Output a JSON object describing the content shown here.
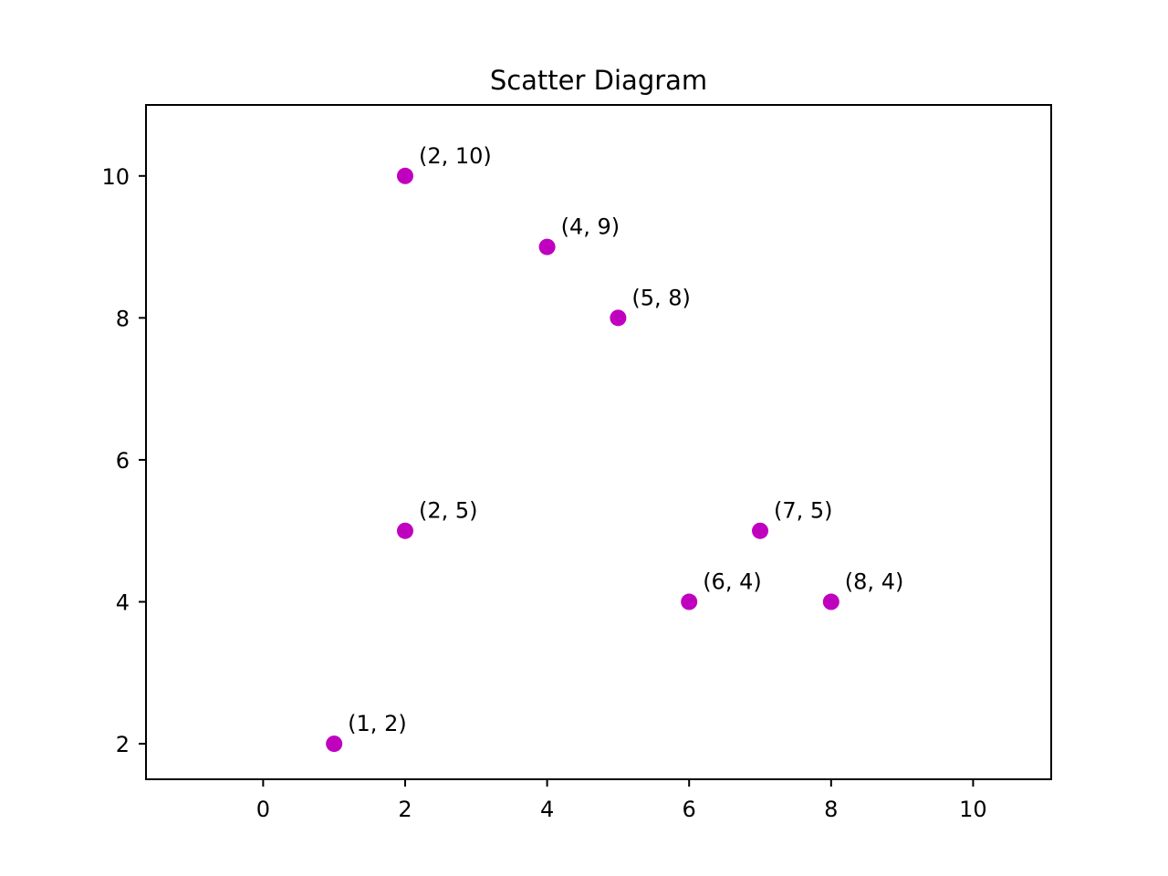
{
  "chart_data": {
    "type": "scatter",
    "title": "Scatter Diagram",
    "xlabel": "",
    "ylabel": "",
    "xlim": [
      -1.65,
      11.1
    ],
    "ylim": [
      1.5,
      11
    ],
    "x_ticks": [
      "0",
      "2",
      "4",
      "6",
      "8",
      "10"
    ],
    "y_ticks": [
      "2",
      "4",
      "6",
      "8",
      "10"
    ],
    "grid": false,
    "marker_color": "#bf00bf",
    "points": [
      {
        "x": 1,
        "y": 2,
        "label": "(1, 2)"
      },
      {
        "x": 2,
        "y": 5,
        "label": "(2, 5)"
      },
      {
        "x": 2,
        "y": 10,
        "label": "(2, 10)"
      },
      {
        "x": 4,
        "y": 9,
        "label": "(4, 9)"
      },
      {
        "x": 5,
        "y": 8,
        "label": "(5, 8)"
      },
      {
        "x": 6,
        "y": 4,
        "label": "(6, 4)"
      },
      {
        "x": 7,
        "y": 5,
        "label": "(7, 5)"
      },
      {
        "x": 8,
        "y": 4,
        "label": "(8, 4)"
      }
    ]
  }
}
